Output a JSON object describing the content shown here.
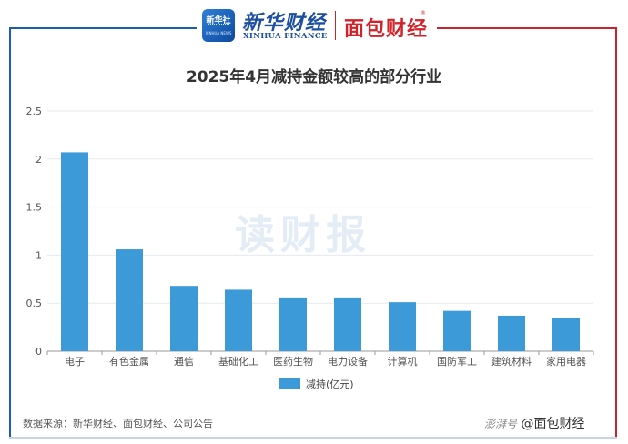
{
  "header": {
    "logo_seal_text": "新华社",
    "logo_seal_sub": "XINHUA NEWS",
    "brand_cn": "新华财经",
    "brand_en": "XINHUA FINANCE",
    "brand2": "面包财经",
    "brand2_mark": "®"
  },
  "watermark": "读财报",
  "source": "数据来源：新华财经、面包财经、公司公告",
  "credit": {
    "prefix": "澎湃号",
    "text": "@面包财经"
  },
  "colors": {
    "bar": "#3c9ad9",
    "frame_left": "#1d5cb5",
    "frame_right": "#c8242f"
  },
  "chart_data": {
    "type": "bar",
    "title": "2025年4月减持金额较高的部分行业",
    "categories": [
      "电子",
      "有色金属",
      "通信",
      "基础化工",
      "医药生物",
      "电力设备",
      "计算机",
      "国防军工",
      "建筑材料",
      "家用电器"
    ],
    "series": [
      {
        "name": "减持(亿元)",
        "values": [
          2.07,
          1.06,
          0.68,
          0.64,
          0.56,
          0.56,
          0.51,
          0.42,
          0.37,
          0.35
        ]
      }
    ],
    "yticks": [
      "0",
      "0.5",
      "1",
      "1.5",
      "2",
      "2.5"
    ],
    "ylim": [
      0,
      2.5
    ],
    "grid": true,
    "legend": "bottom"
  }
}
